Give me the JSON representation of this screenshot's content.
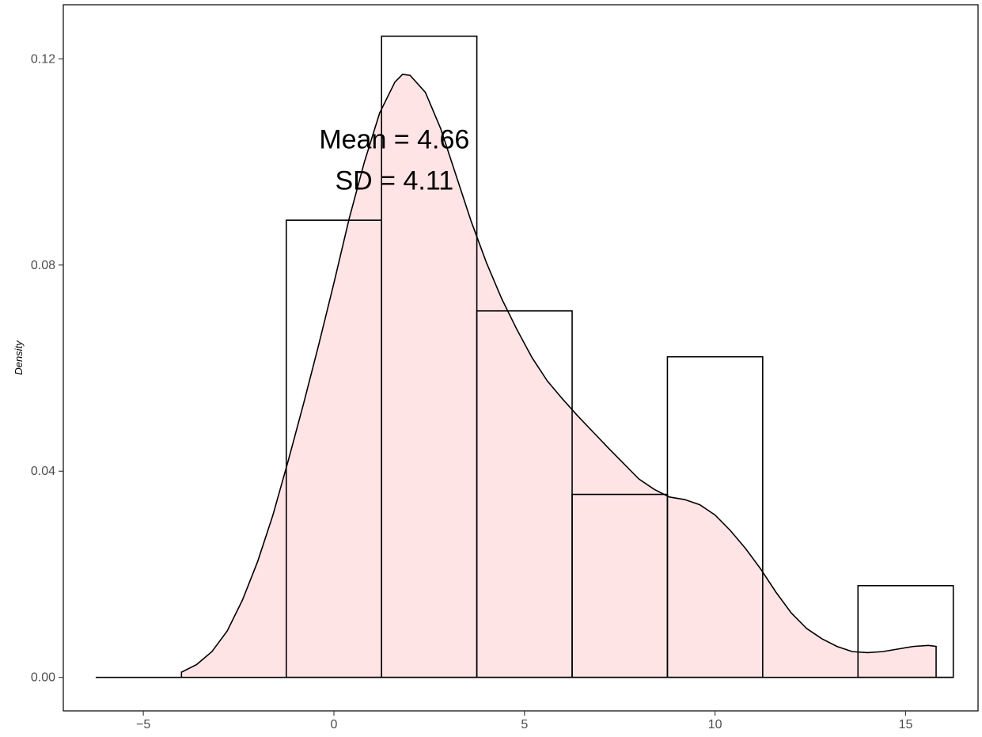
{
  "chart_data": {
    "type": "histogram",
    "title": "",
    "xlabel": "",
    "ylabel": "Density",
    "xlim": [
      -7.1,
      16.9
    ],
    "ylim": [
      -0.0065,
      0.1305
    ],
    "x_ticks": [
      -5,
      0,
      5,
      10,
      15
    ],
    "x_tick_labels": [
      "−5",
      "0",
      "5",
      "10",
      "15"
    ],
    "y_ticks": [
      0,
      0.04,
      0.08,
      0.12
    ],
    "y_tick_labels": [
      "0.00",
      "0.04",
      "0.08",
      "0.12"
    ],
    "grid": false,
    "bin_width": 2.5,
    "bins": [
      {
        "left": -1.25,
        "right": 1.25,
        "density": 0.0887
      },
      {
        "left": 1.25,
        "right": 3.75,
        "density": 0.1244
      },
      {
        "left": 3.75,
        "right": 6.25,
        "density": 0.0711
      },
      {
        "left": 6.25,
        "right": 8.75,
        "density": 0.0355
      },
      {
        "left": 8.75,
        "right": 11.25,
        "density": 0.0622
      },
      {
        "left": 11.25,
        "right": 13.75,
        "density": 0.0
      },
      {
        "left": 13.75,
        "right": 16.25,
        "density": 0.0178
      }
    ],
    "baseline_range": [
      -6.25,
      16.25
    ],
    "density_curve": {
      "fill": "#ffe4e6",
      "stroke": "#000000",
      "x": [
        -4.0,
        -3.6,
        -3.2,
        -2.8,
        -2.4,
        -2.0,
        -1.6,
        -1.2,
        -0.8,
        -0.4,
        0.0,
        0.4,
        0.8,
        1.2,
        1.6,
        1.8,
        2.0,
        2.4,
        2.8,
        3.2,
        3.6,
        4.0,
        4.4,
        4.8,
        5.2,
        5.6,
        6.0,
        6.4,
        6.8,
        7.2,
        7.6,
        8.0,
        8.4,
        8.8,
        9.2,
        9.6,
        10.0,
        10.4,
        10.8,
        11.2,
        11.6,
        12.0,
        12.4,
        12.8,
        13.2,
        13.6,
        14.0,
        14.4,
        14.8,
        15.2,
        15.6,
        15.8
      ],
      "y": [
        0.001,
        0.0025,
        0.005,
        0.009,
        0.015,
        0.0225,
        0.0315,
        0.042,
        0.053,
        0.0645,
        0.0765,
        0.089,
        0.1,
        0.1095,
        0.1155,
        0.117,
        0.1168,
        0.1135,
        0.1065,
        0.0975,
        0.0885,
        0.0805,
        0.0735,
        0.0675,
        0.062,
        0.0575,
        0.054,
        0.0507,
        0.0476,
        0.0445,
        0.0415,
        0.0385,
        0.0365,
        0.035,
        0.0345,
        0.0335,
        0.0315,
        0.0285,
        0.025,
        0.021,
        0.0165,
        0.0125,
        0.0095,
        0.0075,
        0.006,
        0.005,
        0.0048,
        0.005,
        0.0055,
        0.006,
        0.0062,
        0.006
      ]
    },
    "annotation": {
      "lines": [
        "Mean = 4.66",
        "SD = 4.11"
      ],
      "x": 2.0,
      "y_top": 0.1045,
      "y_bottom": 0.0965
    }
  }
}
